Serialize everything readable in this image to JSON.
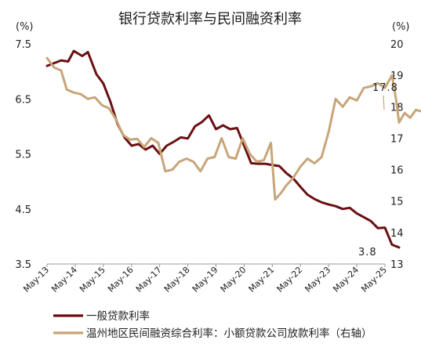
{
  "chart_data": {
    "type": "line",
    "title": "银行贷款利率与民间融资利率",
    "left_axis": {
      "unit": "(%)",
      "ylim": [
        3.5,
        7.5
      ],
      "ticks": [
        "7.5",
        "6.5",
        "5.5",
        "4.5",
        "3.5"
      ]
    },
    "right_axis": {
      "unit": "(%)",
      "ylim": [
        13,
        20
      ],
      "ticks": [
        "20",
        "19",
        "18",
        "17",
        "16",
        "15",
        "14",
        "13"
      ]
    },
    "x_tick_labels": [
      "May-13",
      "May-14",
      "May-15",
      "May-16",
      "May-17",
      "May-18",
      "May-19",
      "May-20",
      "May-21",
      "May-22",
      "May-23",
      "May-24",
      "May-25"
    ],
    "series": [
      {
        "name": "一般贷款利率",
        "axis": "left",
        "color": "#6b0f12",
        "points": [
          [
            0.0,
            7.1
          ],
          [
            0.25,
            7.15
          ],
          [
            0.5,
            7.2
          ],
          [
            0.75,
            7.18
          ],
          [
            0.95,
            7.37
          ],
          [
            1.25,
            7.28
          ],
          [
            1.45,
            7.35
          ],
          [
            1.75,
            6.95
          ],
          [
            2.0,
            6.78
          ],
          [
            2.25,
            6.45
          ],
          [
            2.5,
            6.05
          ],
          [
            2.75,
            5.8
          ],
          [
            3.0,
            5.65
          ],
          [
            3.25,
            5.68
          ],
          [
            3.5,
            5.58
          ],
          [
            3.75,
            5.65
          ],
          [
            4.0,
            5.5
          ],
          [
            4.25,
            5.65
          ],
          [
            4.5,
            5.72
          ],
          [
            4.75,
            5.8
          ],
          [
            5.0,
            5.78
          ],
          [
            5.25,
            6.0
          ],
          [
            5.5,
            6.08
          ],
          [
            5.75,
            6.2
          ],
          [
            6.0,
            5.95
          ],
          [
            6.25,
            6.02
          ],
          [
            6.5,
            5.95
          ],
          [
            6.75,
            5.97
          ],
          [
            7.0,
            5.65
          ],
          [
            7.25,
            5.33
          ],
          [
            7.5,
            5.32
          ],
          [
            7.75,
            5.32
          ],
          [
            8.0,
            5.3
          ],
          [
            8.25,
            5.28
          ],
          [
            8.5,
            5.15
          ],
          [
            8.75,
            5.05
          ],
          [
            9.0,
            4.9
          ],
          [
            9.25,
            4.76
          ],
          [
            9.5,
            4.68
          ],
          [
            9.75,
            4.62
          ],
          [
            10.0,
            4.58
          ],
          [
            10.25,
            4.55
          ],
          [
            10.5,
            4.5
          ],
          [
            10.75,
            4.52
          ],
          [
            11.0,
            4.42
          ],
          [
            11.25,
            4.35
          ],
          [
            11.5,
            4.28
          ],
          [
            11.75,
            4.15
          ],
          [
            12.0,
            4.16
          ],
          [
            12.25,
            3.85
          ],
          [
            12.5,
            3.8
          ]
        ],
        "end_label": "3.8"
      },
      {
        "name": "温州地区民间融资综合利率：小额贷款公司放款利率（右轴）",
        "axis": "right",
        "color": "#c8a579",
        "points": [
          [
            0.0,
            19.55
          ],
          [
            0.25,
            19.25
          ],
          [
            0.5,
            19.15
          ],
          [
            0.7,
            18.55
          ],
          [
            0.95,
            18.45
          ],
          [
            1.2,
            18.4
          ],
          [
            1.45,
            18.25
          ],
          [
            1.7,
            18.3
          ],
          [
            1.95,
            18.05
          ],
          [
            2.2,
            17.95
          ],
          [
            2.45,
            17.6
          ],
          [
            2.7,
            17.1
          ],
          [
            2.95,
            16.95
          ],
          [
            3.2,
            16.98
          ],
          [
            3.45,
            16.72
          ],
          [
            3.7,
            17.0
          ],
          [
            3.95,
            16.85
          ],
          [
            4.2,
            15.95
          ],
          [
            4.45,
            16.0
          ],
          [
            4.7,
            16.25
          ],
          [
            4.95,
            16.35
          ],
          [
            5.2,
            16.25
          ],
          [
            5.45,
            15.95
          ],
          [
            5.7,
            16.35
          ],
          [
            5.95,
            16.4
          ],
          [
            6.2,
            17.0
          ],
          [
            6.45,
            16.4
          ],
          [
            6.7,
            16.35
          ],
          [
            6.95,
            17.0
          ],
          [
            7.2,
            16.5
          ],
          [
            7.45,
            16.25
          ],
          [
            7.7,
            16.3
          ],
          [
            7.95,
            16.85
          ],
          [
            8.1,
            15.05
          ],
          [
            8.3,
            15.25
          ],
          [
            8.5,
            15.5
          ],
          [
            8.75,
            15.75
          ],
          [
            9.0,
            16.1
          ],
          [
            9.25,
            16.35
          ],
          [
            9.5,
            16.2
          ],
          [
            9.75,
            16.4
          ],
          [
            10.0,
            17.2
          ],
          [
            10.25,
            18.25
          ],
          [
            10.5,
            18.0
          ],
          [
            10.75,
            18.3
          ],
          [
            11.0,
            18.2
          ],
          [
            11.25,
            18.6
          ],
          [
            11.5,
            18.65
          ],
          [
            11.75,
            18.75
          ],
          [
            12.0,
            18.6
          ],
          [
            12.25,
            19.0
          ],
          [
            12.4,
            18.2
          ],
          [
            12.5,
            17.5
          ],
          [
            12.7,
            17.8
          ],
          [
            12.9,
            17.65
          ],
          [
            13.1,
            17.9
          ],
          [
            13.3,
            17.85
          ]
        ],
        "end_label": "17.8"
      }
    ],
    "legend_position": "bottom"
  }
}
